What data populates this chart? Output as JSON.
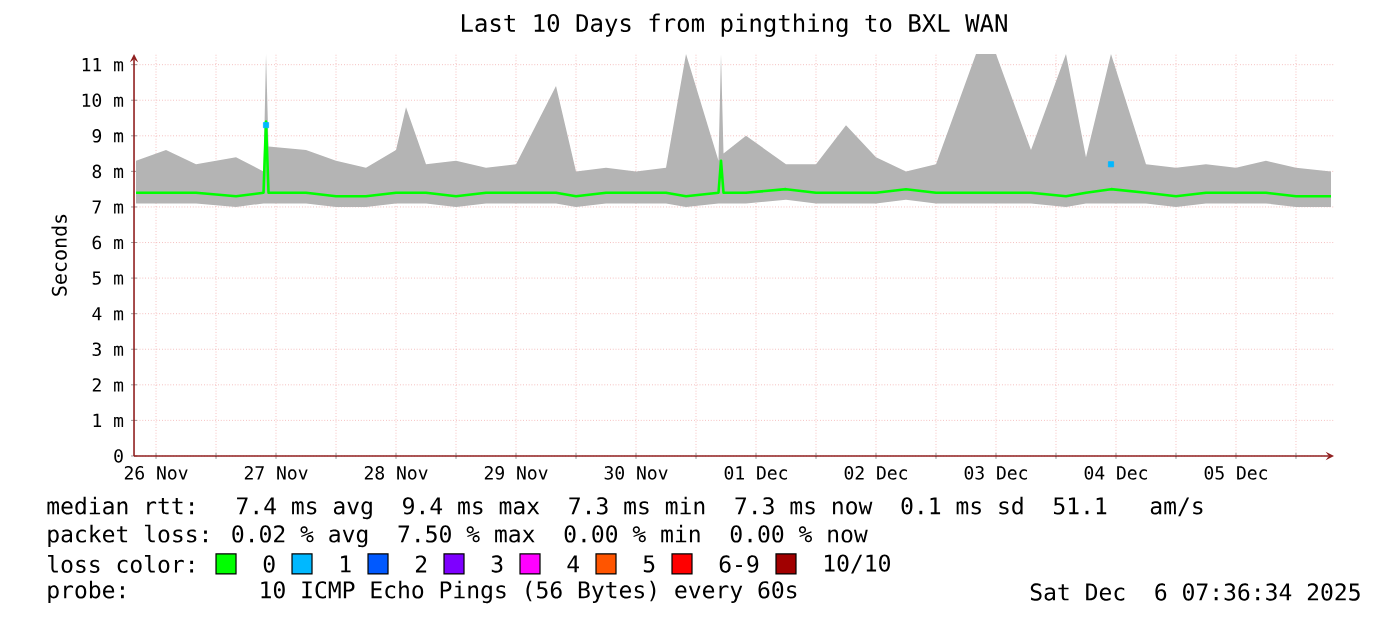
{
  "chart_data": {
    "type": "line",
    "title": "Last 10 Days from pingthing to BXL WAN",
    "ylabel": "Seconds",
    "xlim": [
      "2025-11-26T07:36",
      "2025-12-06T07:36"
    ],
    "xticks": [
      {
        "value": "2025-11-26T12:00",
        "label": "26 Nov"
      },
      {
        "value": "2025-11-27T00:00",
        "label": null
      },
      {
        "value": "2025-11-27T12:00",
        "label": "27 Nov"
      },
      {
        "value": "2025-11-28T00:00",
        "label": null
      },
      {
        "value": "2025-11-28T12:00",
        "label": "28 Nov"
      },
      {
        "value": "2025-11-29T00:00",
        "label": null
      },
      {
        "value": "2025-11-29T12:00",
        "label": "29 Nov"
      },
      {
        "value": "2025-11-30T00:00",
        "label": null
      },
      {
        "value": "2025-11-30T12:00",
        "label": "30 Nov"
      },
      {
        "value": "2025-12-01T00:00",
        "label": null
      },
      {
        "value": "2025-12-01T12:00",
        "label": "01 Dec"
      },
      {
        "value": "2025-12-02T00:00",
        "label": null
      },
      {
        "value": "2025-12-02T12:00",
        "label": "02 Dec"
      },
      {
        "value": "2025-12-03T00:00",
        "label": null
      },
      {
        "value": "2025-12-03T12:00",
        "label": "03 Dec"
      },
      {
        "value": "2025-12-04T00:00",
        "label": null
      },
      {
        "value": "2025-12-04T12:00",
        "label": "04 Dec"
      },
      {
        "value": "2025-12-05T00:00",
        "label": null
      },
      {
        "value": "2025-12-05T12:00",
        "label": "05 Dec"
      },
      {
        "value": "2025-12-06T00:00",
        "label": null
      }
    ],
    "ylim": [
      0,
      11.3
    ],
    "yticks": [
      0,
      {
        "value": 1,
        "label": "1 m"
      },
      {
        "value": 2,
        "label": "2 m"
      },
      {
        "value": 3,
        "label": "3 m"
      },
      {
        "value": 4,
        "label": "4 m"
      },
      {
        "value": 5,
        "label": "5 m"
      },
      {
        "value": 6,
        "label": "6 m"
      },
      {
        "value": 7,
        "label": "7 m"
      },
      {
        "value": 8,
        "label": "8 m"
      },
      {
        "value": 9,
        "label": "9 m"
      },
      {
        "value": 10,
        "label": "10 m"
      },
      {
        "value": 11,
        "label": "11 m"
      }
    ],
    "grid": true,
    "legend": "bottom",
    "legend_title": "loss color:",
    "series": [
      {
        "name": "0",
        "color": "#00ff00",
        "x": [
          "2025-11-26T08:00",
          "2025-11-26T14:00",
          "2025-11-26T20:00",
          "2025-11-27T04:00",
          "2025-11-27T09:30",
          "2025-11-27T10:00",
          "2025-11-27T10:30",
          "2025-11-27T18:00",
          "2025-11-28T00:00",
          "2025-11-28T06:00",
          "2025-11-28T12:00",
          "2025-11-28T14:00",
          "2025-11-28T18:00",
          "2025-11-29T00:00",
          "2025-11-29T06:00",
          "2025-11-29T12:00",
          "2025-11-29T20:00",
          "2025-11-30T00:00",
          "2025-11-30T06:00",
          "2025-11-30T12:00",
          "2025-11-30T18:00",
          "2025-11-30T22:00",
          "2025-12-01T04:30",
          "2025-12-01T05:00",
          "2025-12-01T05:30",
          "2025-12-01T10:00",
          "2025-12-01T18:00",
          "2025-12-02T00:00",
          "2025-12-02T06:00",
          "2025-12-02T12:00",
          "2025-12-02T18:00",
          "2025-12-03T00:00",
          "2025-12-03T08:00",
          "2025-12-03T12:00",
          "2025-12-03T19:00",
          "2025-12-04T02:00",
          "2025-12-04T06:00",
          "2025-12-04T11:00",
          "2025-12-04T18:00",
          "2025-12-05T00:00",
          "2025-12-05T06:00",
          "2025-12-05T12:00",
          "2025-12-05T18:00",
          "2025-12-06T00:00",
          "2025-12-06T07:00"
        ],
        "values": [
          7.4,
          7.4,
          7.4,
          7.3,
          7.4,
          9.4,
          7.4,
          7.4,
          7.3,
          7.3,
          7.4,
          7.4,
          7.4,
          7.3,
          7.4,
          7.4,
          7.4,
          7.3,
          7.4,
          7.4,
          7.4,
          7.3,
          7.4,
          8.3,
          7.4,
          7.4,
          7.5,
          7.4,
          7.4,
          7.4,
          7.5,
          7.4,
          7.4,
          7.4,
          7.4,
          7.3,
          7.4,
          7.5,
          7.4,
          7.3,
          7.4,
          7.4,
          7.4,
          7.3,
          7.3
        ],
        "lower": [
          7.1,
          7.1,
          7.1,
          7.0,
          7.1,
          7.1,
          7.1,
          7.1,
          7.0,
          7.0,
          7.1,
          7.1,
          7.1,
          7.0,
          7.1,
          7.1,
          7.1,
          7.0,
          7.1,
          7.1,
          7.1,
          7.0,
          7.1,
          7.1,
          7.1,
          7.1,
          7.2,
          7.1,
          7.1,
          7.1,
          7.2,
          7.1,
          7.1,
          7.1,
          7.1,
          7.0,
          7.1,
          7.1,
          7.1,
          7.0,
          7.1,
          7.1,
          7.1,
          7.0,
          7.0
        ],
        "upper": [
          8.3,
          8.6,
          8.2,
          8.4,
          8.0,
          11.3,
          8.7,
          8.6,
          8.3,
          8.1,
          8.6,
          9.8,
          8.2,
          8.3,
          8.1,
          8.2,
          10.4,
          8.0,
          8.1,
          8.0,
          8.1,
          11.3,
          8.3,
          11.3,
          8.5,
          9.0,
          8.2,
          8.2,
          9.3,
          8.4,
          8.0,
          8.2,
          11.3,
          11.3,
          8.6,
          11.3,
          8.4,
          11.3,
          8.2,
          8.1,
          8.2,
          8.1,
          8.3,
          8.1,
          8.0
        ]
      },
      {
        "name": "1",
        "color": "#00b8ff",
        "type": "scatter",
        "marker": "square",
        "x": [
          "2025-11-27T10:00",
          "2025-12-04T11:00"
        ],
        "values": [
          9.3,
          8.2
        ]
      },
      {
        "name": "2",
        "color": "#0059ff",
        "type": "scatter",
        "marker": "square"
      },
      {
        "name": "3",
        "color": "#7e00ff",
        "type": "scatter",
        "marker": "square"
      },
      {
        "name": "4",
        "color": "#ff00ff",
        "type": "scatter",
        "marker": "square"
      },
      {
        "name": "5",
        "color": "#ff5500",
        "type": "scatter",
        "marker": "square"
      },
      {
        "name": "6-9",
        "color": "#ff0000",
        "type": "scatter",
        "marker": "square"
      },
      {
        "name": "10/10",
        "color": "#a10000",
        "type": "scatter",
        "marker": "square"
      }
    ],
    "annotations": [
      "median rtt:  7.4 ms avg  9.4 ms max  7.3 ms min  7.3 ms now  0.1 ms sd  51.1   am/s",
      "packet loss: 0.02 % avg  7.50 % max  0.00 % min  0.00 % now",
      "probe:       10 ICMP Echo Pings (56 Bytes) every 60s",
      "Sat Dec  6 07:36:34 2025"
    ]
  }
}
